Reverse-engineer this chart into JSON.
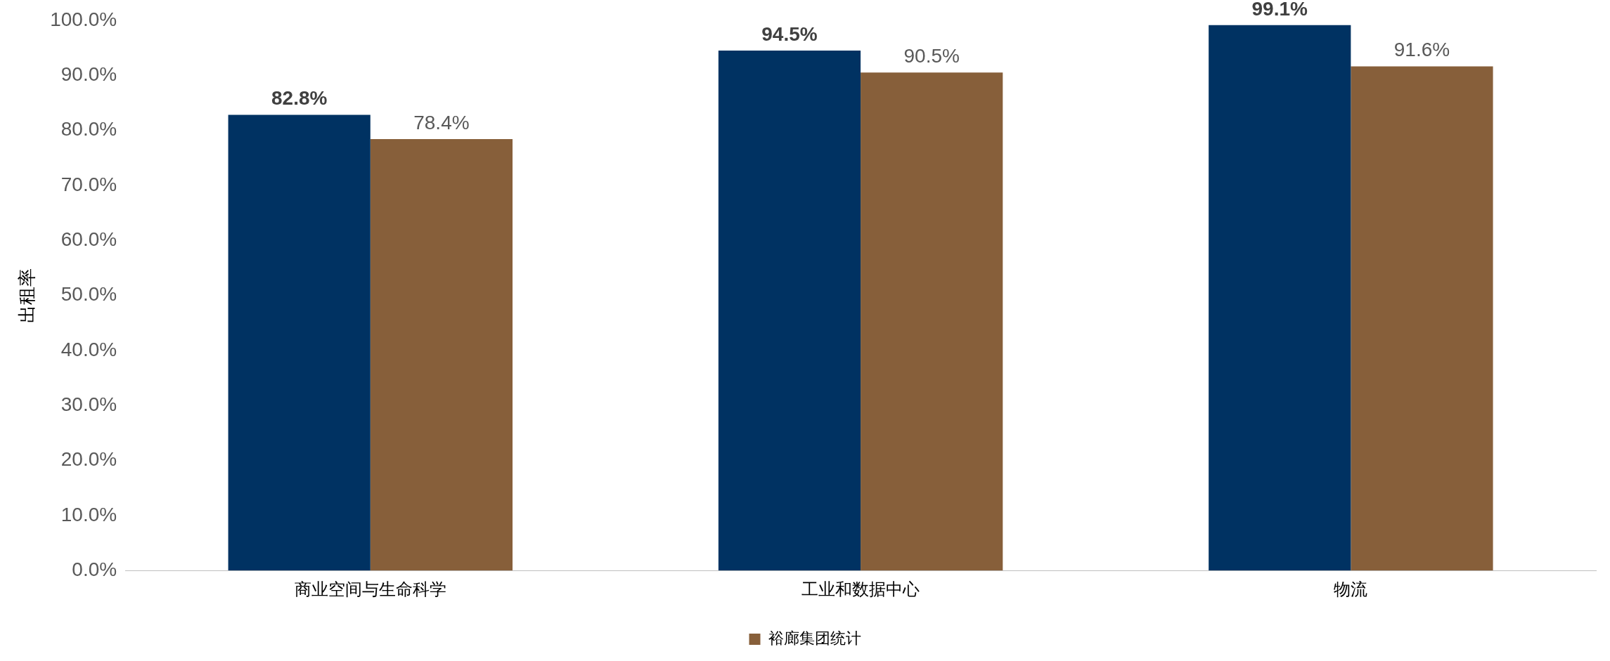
{
  "chart_data": {
    "type": "bar",
    "ylabel": "出租率",
    "categories": [
      "商业空间与生命科学",
      "工业和数据中心",
      "物流"
    ],
    "series": [
      {
        "color": "#003262",
        "values": [
          82.8,
          94.5,
          99.1
        ],
        "value_labels": [
          "82.8%",
          "94.5%",
          "99.1%"
        ]
      },
      {
        "name": "裕廊集团统计",
        "color": "#875f3a",
        "values": [
          78.4,
          90.5,
          91.6
        ],
        "value_labels": [
          "78.4%",
          "90.5%",
          "91.6%"
        ]
      }
    ],
    "ylim": [
      0,
      100
    ],
    "yticks": [
      {
        "value": 0,
        "label": "0.0%"
      },
      {
        "value": 10,
        "label": "10.0%"
      },
      {
        "value": 20,
        "label": "20.0%"
      },
      {
        "value": 30,
        "label": "30.0%"
      },
      {
        "value": 40,
        "label": "40.0%"
      },
      {
        "value": 50,
        "label": "50.0%"
      },
      {
        "value": 60,
        "label": "60.0%"
      },
      {
        "value": 70,
        "label": "70.0%"
      },
      {
        "value": 80,
        "label": "80.0%"
      },
      {
        "value": 90,
        "label": "90.0%"
      },
      {
        "value": 100,
        "label": "100.0%"
      }
    ],
    "grid": false,
    "legend": "bottom"
  }
}
